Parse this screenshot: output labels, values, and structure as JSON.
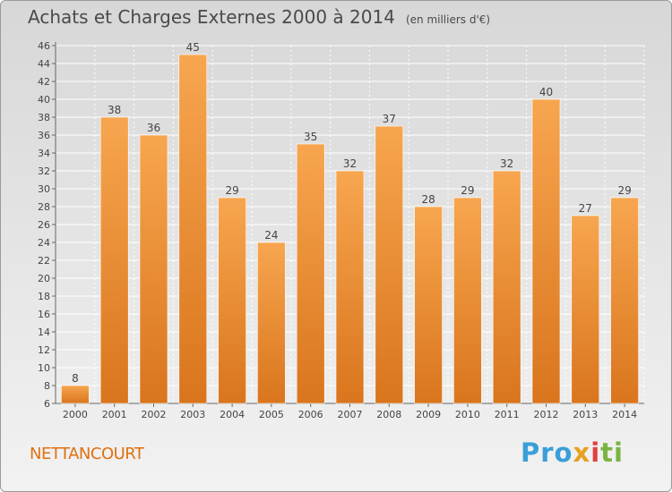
{
  "header": {
    "title": "Achats et Charges Externes 2000 à 2014",
    "subtitle": "(en milliers d'€)"
  },
  "footer": {
    "location": "NETTANCOURT",
    "logo": {
      "p1": "Pro",
      "p2": "x",
      "p3": "i",
      "p4": "ti"
    }
  },
  "colors": {
    "bar_top": "#f7a64f",
    "bar_bottom": "#d9751d",
    "accent": "#e07010"
  },
  "chart_data": {
    "type": "bar",
    "title": "Achats et Charges Externes 2000 à 2014",
    "subtitle": "(en milliers d'€)",
    "categories": [
      "2000",
      "2001",
      "2002",
      "2003",
      "2004",
      "2005",
      "2006",
      "2007",
      "2008",
      "2009",
      "2010",
      "2011",
      "2012",
      "2013",
      "2014"
    ],
    "values": [
      8,
      38,
      36,
      45,
      29,
      24,
      35,
      32,
      37,
      28,
      29,
      32,
      40,
      27,
      29
    ],
    "ylim": [
      6,
      46
    ],
    "yticks": [
      6,
      8,
      10,
      12,
      14,
      16,
      18,
      20,
      22,
      24,
      26,
      28,
      30,
      32,
      34,
      36,
      38,
      40,
      42,
      44,
      46
    ],
    "grid": true,
    "legend": "none"
  }
}
